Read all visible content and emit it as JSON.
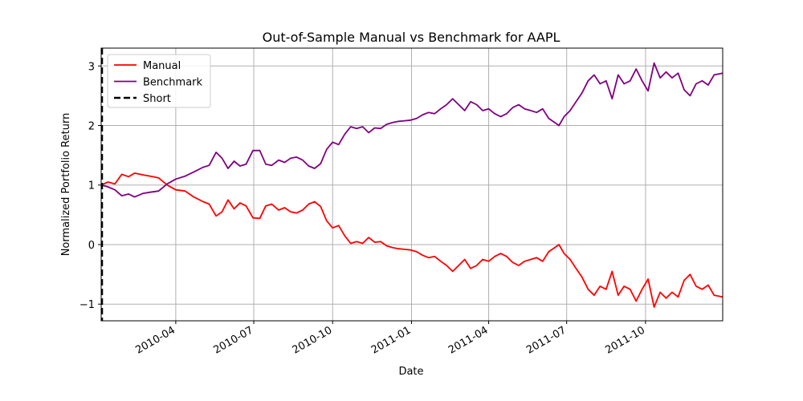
{
  "chart_data": {
    "type": "line",
    "title": "Out-of-Sample Manual vs Benchmark for AAPL",
    "xlabel": "Date",
    "ylabel": "Normalized Portfolio Return",
    "xlim": [
      "2010-01-04",
      "2011-12-30"
    ],
    "ylim": [
      -1.28,
      3.3
    ],
    "grid": true,
    "legend_position": "top-left",
    "x_tick_labels": [
      "2010-04",
      "2010-07",
      "2010-10",
      "2011-01",
      "2011-04",
      "2011-07",
      "2011-10"
    ],
    "x_ticks": [
      "2010-04-01",
      "2010-07-01",
      "2010-10-01",
      "2011-01-01",
      "2011-04-01",
      "2011-07-01",
      "2011-10-01"
    ],
    "y_ticks": [
      -1,
      0,
      1,
      2,
      3
    ],
    "y_tick_labels": [
      "−1",
      "0",
      "1",
      "2",
      "3"
    ],
    "series": [
      {
        "name": "Manual",
        "color": "#ff0000",
        "style": "solid",
        "points": [
          [
            "2010-01-04",
            1.0
          ],
          [
            "2010-01-12",
            1.05
          ],
          [
            "2010-01-20",
            1.02
          ],
          [
            "2010-01-28",
            1.18
          ],
          [
            "2010-02-05",
            1.14
          ],
          [
            "2010-02-12",
            1.2
          ],
          [
            "2010-02-22",
            1.17
          ],
          [
            "2010-03-02",
            1.15
          ],
          [
            "2010-03-12",
            1.12
          ],
          [
            "2010-03-22",
            1.0
          ],
          [
            "2010-04-01",
            0.92
          ],
          [
            "2010-04-12",
            0.9
          ],
          [
            "2010-04-22",
            0.8
          ],
          [
            "2010-05-03",
            0.72
          ],
          [
            "2010-05-10",
            0.68
          ],
          [
            "2010-05-18",
            0.48
          ],
          [
            "2010-05-25",
            0.55
          ],
          [
            "2010-06-01",
            0.75
          ],
          [
            "2010-06-08",
            0.6
          ],
          [
            "2010-06-15",
            0.7
          ],
          [
            "2010-06-22",
            0.65
          ],
          [
            "2010-06-30",
            0.45
          ],
          [
            "2010-07-08",
            0.44
          ],
          [
            "2010-07-15",
            0.65
          ],
          [
            "2010-07-22",
            0.68
          ],
          [
            "2010-07-30",
            0.58
          ],
          [
            "2010-08-06",
            0.62
          ],
          [
            "2010-08-13",
            0.55
          ],
          [
            "2010-08-20",
            0.53
          ],
          [
            "2010-08-27",
            0.58
          ],
          [
            "2010-09-03",
            0.68
          ],
          [
            "2010-09-10",
            0.72
          ],
          [
            "2010-09-17",
            0.64
          ],
          [
            "2010-09-24",
            0.4
          ],
          [
            "2010-10-01",
            0.28
          ],
          [
            "2010-10-08",
            0.32
          ],
          [
            "2010-10-15",
            0.15
          ],
          [
            "2010-10-22",
            0.02
          ],
          [
            "2010-10-29",
            0.05
          ],
          [
            "2010-11-05",
            0.02
          ],
          [
            "2010-11-12",
            0.12
          ],
          [
            "2010-11-19",
            0.04
          ],
          [
            "2010-11-26",
            0.05
          ],
          [
            "2010-12-03",
            -0.02
          ],
          [
            "2010-12-10",
            -0.05
          ],
          [
            "2010-12-17",
            -0.07
          ],
          [
            "2010-12-24",
            -0.08
          ],
          [
            "2010-12-31",
            -0.09
          ],
          [
            "2011-01-07",
            -0.12
          ],
          [
            "2011-01-14",
            -0.18
          ],
          [
            "2011-01-21",
            -0.22
          ],
          [
            "2011-01-28",
            -0.2
          ],
          [
            "2011-02-04",
            -0.28
          ],
          [
            "2011-02-11",
            -0.35
          ],
          [
            "2011-02-18",
            -0.45
          ],
          [
            "2011-02-25",
            -0.35
          ],
          [
            "2011-03-04",
            -0.25
          ],
          [
            "2011-03-11",
            -0.4
          ],
          [
            "2011-03-18",
            -0.35
          ],
          [
            "2011-03-25",
            -0.25
          ],
          [
            "2011-04-01",
            -0.28
          ],
          [
            "2011-04-08",
            -0.2
          ],
          [
            "2011-04-15",
            -0.15
          ],
          [
            "2011-04-22",
            -0.2
          ],
          [
            "2011-04-29",
            -0.3
          ],
          [
            "2011-05-06",
            -0.35
          ],
          [
            "2011-05-13",
            -0.28
          ],
          [
            "2011-05-20",
            -0.25
          ],
          [
            "2011-05-27",
            -0.22
          ],
          [
            "2011-06-03",
            -0.28
          ],
          [
            "2011-06-10",
            -0.12
          ],
          [
            "2011-06-17",
            -0.05
          ],
          [
            "2011-06-22",
            0.0
          ],
          [
            "2011-06-28",
            -0.15
          ],
          [
            "2011-07-05",
            -0.25
          ],
          [
            "2011-07-12",
            -0.4
          ],
          [
            "2011-07-19",
            -0.55
          ],
          [
            "2011-07-26",
            -0.75
          ],
          [
            "2011-08-02",
            -0.85
          ],
          [
            "2011-08-09",
            -0.7
          ],
          [
            "2011-08-16",
            -0.75
          ],
          [
            "2011-08-23",
            -0.45
          ],
          [
            "2011-08-30",
            -0.85
          ],
          [
            "2011-09-06",
            -0.7
          ],
          [
            "2011-09-13",
            -0.75
          ],
          [
            "2011-09-20",
            -0.95
          ],
          [
            "2011-09-27",
            -0.75
          ],
          [
            "2011-10-04",
            -0.58
          ],
          [
            "2011-10-11",
            -1.05
          ],
          [
            "2011-10-18",
            -0.8
          ],
          [
            "2011-10-25",
            -0.9
          ],
          [
            "2011-11-01",
            -0.8
          ],
          [
            "2011-11-08",
            -0.88
          ],
          [
            "2011-11-15",
            -0.6
          ],
          [
            "2011-11-22",
            -0.5
          ],
          [
            "2011-11-29",
            -0.7
          ],
          [
            "2011-12-06",
            -0.75
          ],
          [
            "2011-12-13",
            -0.68
          ],
          [
            "2011-12-20",
            -0.85
          ],
          [
            "2011-12-30",
            -0.88
          ]
        ]
      },
      {
        "name": "Benchmark",
        "color": "#800080",
        "style": "solid",
        "points": [
          [
            "2010-01-04",
            1.0
          ],
          [
            "2010-01-12",
            0.97
          ],
          [
            "2010-01-20",
            0.92
          ],
          [
            "2010-01-28",
            0.82
          ],
          [
            "2010-02-05",
            0.85
          ],
          [
            "2010-02-12",
            0.8
          ],
          [
            "2010-02-22",
            0.86
          ],
          [
            "2010-03-02",
            0.88
          ],
          [
            "2010-03-12",
            0.9
          ],
          [
            "2010-03-22",
            1.02
          ],
          [
            "2010-04-01",
            1.1
          ],
          [
            "2010-04-12",
            1.15
          ],
          [
            "2010-04-22",
            1.22
          ],
          [
            "2010-05-03",
            1.3
          ],
          [
            "2010-05-10",
            1.33
          ],
          [
            "2010-05-18",
            1.55
          ],
          [
            "2010-05-25",
            1.45
          ],
          [
            "2010-06-01",
            1.28
          ],
          [
            "2010-06-08",
            1.4
          ],
          [
            "2010-06-15",
            1.32
          ],
          [
            "2010-06-22",
            1.35
          ],
          [
            "2010-06-30",
            1.58
          ],
          [
            "2010-07-08",
            1.58
          ],
          [
            "2010-07-15",
            1.35
          ],
          [
            "2010-07-22",
            1.33
          ],
          [
            "2010-07-30",
            1.42
          ],
          [
            "2010-08-06",
            1.38
          ],
          [
            "2010-08-13",
            1.45
          ],
          [
            "2010-08-20",
            1.47
          ],
          [
            "2010-08-27",
            1.42
          ],
          [
            "2010-09-03",
            1.32
          ],
          [
            "2010-09-10",
            1.28
          ],
          [
            "2010-09-17",
            1.36
          ],
          [
            "2010-09-24",
            1.6
          ],
          [
            "2010-10-01",
            1.72
          ],
          [
            "2010-10-08",
            1.68
          ],
          [
            "2010-10-15",
            1.85
          ],
          [
            "2010-10-22",
            1.98
          ],
          [
            "2010-10-29",
            1.95
          ],
          [
            "2010-11-05",
            1.98
          ],
          [
            "2010-11-12",
            1.88
          ],
          [
            "2010-11-19",
            1.96
          ],
          [
            "2010-11-26",
            1.95
          ],
          [
            "2010-12-03",
            2.02
          ],
          [
            "2010-12-10",
            2.05
          ],
          [
            "2010-12-17",
            2.07
          ],
          [
            "2010-12-24",
            2.08
          ],
          [
            "2010-12-31",
            2.09
          ],
          [
            "2011-01-07",
            2.12
          ],
          [
            "2011-01-14",
            2.18
          ],
          [
            "2011-01-21",
            2.22
          ],
          [
            "2011-01-28",
            2.2
          ],
          [
            "2011-02-04",
            2.28
          ],
          [
            "2011-02-11",
            2.35
          ],
          [
            "2011-02-18",
            2.45
          ],
          [
            "2011-02-25",
            2.35
          ],
          [
            "2011-03-04",
            2.25
          ],
          [
            "2011-03-11",
            2.4
          ],
          [
            "2011-03-18",
            2.35
          ],
          [
            "2011-03-25",
            2.25
          ],
          [
            "2011-04-01",
            2.28
          ],
          [
            "2011-04-08",
            2.2
          ],
          [
            "2011-04-15",
            2.15
          ],
          [
            "2011-04-22",
            2.2
          ],
          [
            "2011-04-29",
            2.3
          ],
          [
            "2011-05-06",
            2.35
          ],
          [
            "2011-05-13",
            2.28
          ],
          [
            "2011-05-20",
            2.25
          ],
          [
            "2011-05-27",
            2.22
          ],
          [
            "2011-06-03",
            2.28
          ],
          [
            "2011-06-10",
            2.12
          ],
          [
            "2011-06-17",
            2.05
          ],
          [
            "2011-06-22",
            2.0
          ],
          [
            "2011-06-28",
            2.15
          ],
          [
            "2011-07-05",
            2.25
          ],
          [
            "2011-07-12",
            2.4
          ],
          [
            "2011-07-19",
            2.55
          ],
          [
            "2011-07-26",
            2.75
          ],
          [
            "2011-08-02",
            2.85
          ],
          [
            "2011-08-09",
            2.7
          ],
          [
            "2011-08-16",
            2.75
          ],
          [
            "2011-08-23",
            2.45
          ],
          [
            "2011-08-30",
            2.85
          ],
          [
            "2011-09-06",
            2.7
          ],
          [
            "2011-09-13",
            2.75
          ],
          [
            "2011-09-20",
            2.95
          ],
          [
            "2011-09-27",
            2.75
          ],
          [
            "2011-10-04",
            2.58
          ],
          [
            "2011-10-11",
            3.05
          ],
          [
            "2011-10-18",
            2.8
          ],
          [
            "2011-10-25",
            2.9
          ],
          [
            "2011-11-01",
            2.8
          ],
          [
            "2011-11-08",
            2.88
          ],
          [
            "2011-11-15",
            2.6
          ],
          [
            "2011-11-22",
            2.5
          ],
          [
            "2011-11-29",
            2.7
          ],
          [
            "2011-12-06",
            2.75
          ],
          [
            "2011-12-13",
            2.68
          ],
          [
            "2011-12-20",
            2.85
          ],
          [
            "2011-12-30",
            2.88
          ]
        ]
      }
    ],
    "vlines": [
      {
        "name": "Short",
        "date": "2010-01-04",
        "color": "#000000",
        "style": "dashed"
      }
    ],
    "legend": [
      {
        "label": "Manual",
        "color": "#ff0000",
        "style": "solid"
      },
      {
        "label": "Benchmark",
        "color": "#800080",
        "style": "solid"
      },
      {
        "label": "Short",
        "color": "#000000",
        "style": "dashed"
      }
    ]
  }
}
